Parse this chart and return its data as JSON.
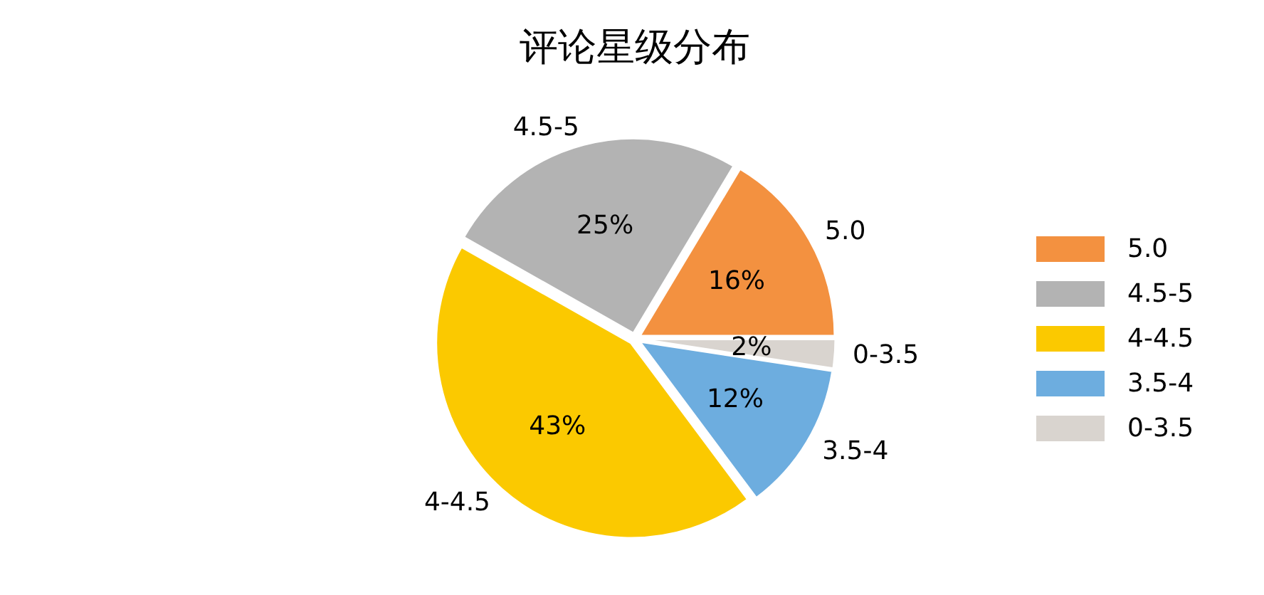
{
  "chart_data": {
    "type": "pie",
    "title": "评论星级分布",
    "categories": [
      "5.0",
      "4.5-5",
      "4-4.5",
      "3.5-4",
      "0-3.5"
    ],
    "values": [
      16.4,
      25.4,
      43.4,
      12.4,
      2.4
    ],
    "value_labels": [
      "16%",
      "25%",
      "43%",
      "12%",
      "2%"
    ],
    "colors": [
      "#f39140",
      "#b3b3b3",
      "#fbc900",
      "#6daddf",
      "#d9d4cf"
    ],
    "legend": "right"
  }
}
